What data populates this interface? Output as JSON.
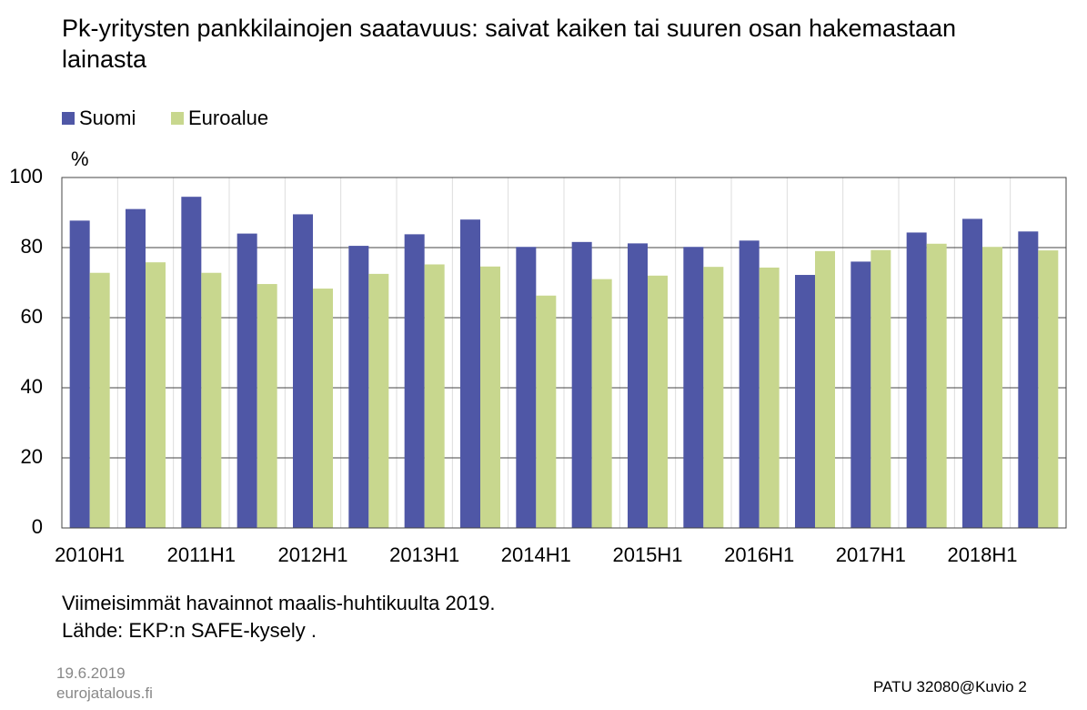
{
  "chart_data": {
    "type": "bar",
    "title": "Pk-yritysten pankkilainojen saatavuus: saivat kaiken tai suuren osan hakemastaan lainasta",
    "y_label": "%",
    "categories": [
      "2010H1",
      null,
      "2011H1",
      null,
      "2012H1",
      null,
      "2013H1",
      null,
      "2014H1",
      null,
      "2015H1",
      null,
      "2016H1",
      null,
      "2017H1",
      null,
      "2018H1",
      null
    ],
    "series": [
      {
        "name": "Suomi",
        "color": "#4f57a6",
        "values": [
          87.7,
          91,
          94.5,
          84,
          89.5,
          80.5,
          83.8,
          88,
          80.2,
          81.6,
          81.2,
          80.2,
          82,
          72.2,
          76,
          84.3,
          88.2,
          84.6
        ]
      },
      {
        "name": "Euroalue",
        "color": "#c8d78e",
        "values": [
          72.8,
          75.8,
          72.8,
          69.6,
          68.3,
          72.5,
          75.2,
          74.6,
          66.3,
          71,
          72,
          74.5,
          74.3,
          79,
          79.3,
          81.1,
          80.2,
          79.2
        ]
      }
    ],
    "ylim": [
      0,
      100
    ],
    "yticks": [
      0,
      20,
      40,
      60,
      80,
      100
    ],
    "grid": true,
    "notes": [
      "Viimeisimmät havainnot maalis-huhtikuulta 2019.",
      "Lähde: EKP:n SAFE-kysely ."
    ],
    "date": "19.6.2019",
    "site": "eurojatalous.fi",
    "code": "PATU 32080@Kuvio 2"
  }
}
